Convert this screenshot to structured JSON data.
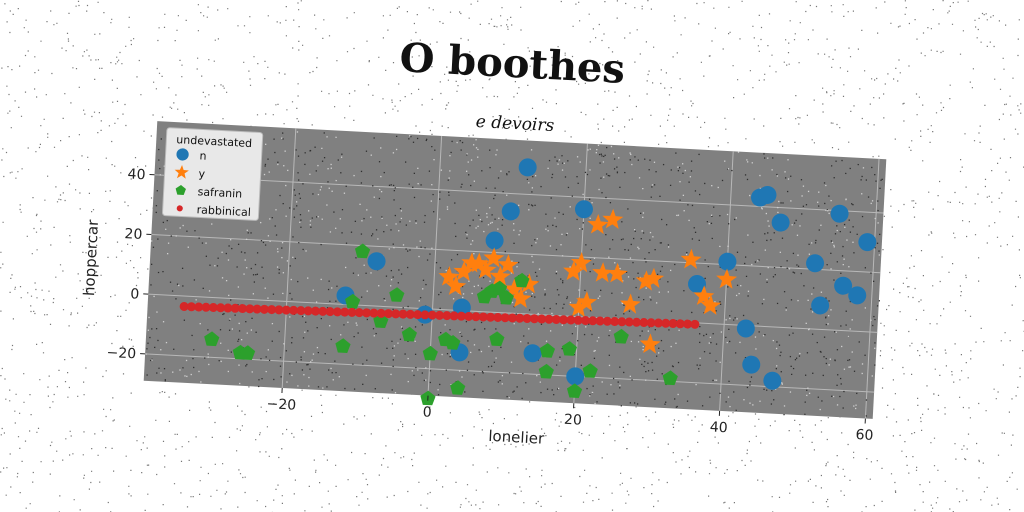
{
  "chart_data": {
    "type": "scatter",
    "title": "O boothes",
    "subtitle": "e devoirs",
    "xlabel": "lonelier",
    "ylabel": "hoppercar",
    "xlim": [
      -39,
      61
    ],
    "ylim": [
      -29,
      58
    ],
    "xticks": [
      -20,
      0,
      20,
      40,
      60
    ],
    "yticks": [
      -20,
      0,
      20,
      40
    ],
    "grid": true,
    "background": "#808080",
    "legend": {
      "title": "undevastated",
      "placement": "top-left"
    },
    "series": [
      {
        "name": "n",
        "marker": "circle",
        "color": "#1f77b4",
        "points": [
          [
            12,
            49
          ],
          [
            20,
            36
          ],
          [
            10,
            34
          ],
          [
            8,
            24
          ],
          [
            -8,
            15
          ],
          [
            -12,
            3
          ],
          [
            -1,
            -2
          ],
          [
            4,
            1
          ],
          [
            4,
            -14
          ],
          [
            14,
            -13
          ],
          [
            20,
            -20
          ],
          [
            40,
            21
          ],
          [
            36,
            13
          ],
          [
            44,
            43
          ],
          [
            45,
            44
          ],
          [
            47,
            35
          ],
          [
            52,
            22
          ],
          [
            53,
            8
          ],
          [
            55,
            39
          ],
          [
            56,
            15
          ],
          [
            58,
            12
          ],
          [
            59,
            30
          ],
          [
            43,
            -1
          ],
          [
            44,
            -13
          ],
          [
            47,
            -18
          ]
        ]
      },
      {
        "name": "y",
        "marker": "star",
        "color": "#ff7f0e",
        "points": [
          [
            2,
            11
          ],
          [
            3,
            8
          ],
          [
            4,
            13
          ],
          [
            5,
            16
          ],
          [
            6,
            16
          ],
          [
            7,
            14
          ],
          [
            8,
            18
          ],
          [
            9,
            12
          ],
          [
            10,
            16
          ],
          [
            11,
            8
          ],
          [
            12,
            5
          ],
          [
            13,
            10
          ],
          [
            19,
            15
          ],
          [
            20,
            18
          ],
          [
            20,
            3
          ],
          [
            21,
            5
          ],
          [
            22,
            31
          ],
          [
            23,
            15
          ],
          [
            24,
            33
          ],
          [
            25,
            15
          ],
          [
            27,
            5
          ],
          [
            29,
            13
          ],
          [
            30,
            14
          ],
          [
            30,
            -8
          ],
          [
            35,
            21
          ],
          [
            37,
            9
          ],
          [
            38,
            6
          ],
          [
            40,
            15
          ]
        ]
      },
      {
        "name": "safranin",
        "marker": "pentagon",
        "color": "#2ca02c",
        "points": [
          [
            -30,
            -14
          ],
          [
            -26,
            -18
          ],
          [
            -25,
            -18
          ],
          [
            -11,
            1
          ],
          [
            -10,
            18
          ],
          [
            -12,
            -14
          ],
          [
            -5,
            4
          ],
          [
            -7,
            -5
          ],
          [
            -3,
            -9
          ],
          [
            0,
            -15
          ],
          [
            0,
            -30
          ],
          [
            2,
            -10
          ],
          [
            3,
            -11
          ],
          [
            4,
            -26
          ],
          [
            7,
            5
          ],
          [
            8,
            7
          ],
          [
            9,
            8
          ],
          [
            9,
            -9
          ],
          [
            10,
            5
          ],
          [
            12,
            11
          ],
          [
            16,
            -19
          ],
          [
            16,
            -12
          ],
          [
            19,
            -11
          ],
          [
            20,
            -25
          ],
          [
            22,
            -18
          ],
          [
            26,
            -6
          ],
          [
            33,
            -19
          ]
        ]
      },
      {
        "name": "rabbinical",
        "marker": "circle-small",
        "color": "#d62728",
        "line_fit": {
          "x_start": -34,
          "x_end": 36,
          "y_start": -3.5,
          "y_end": -0.5,
          "n_points": 71
        }
      }
    ]
  }
}
